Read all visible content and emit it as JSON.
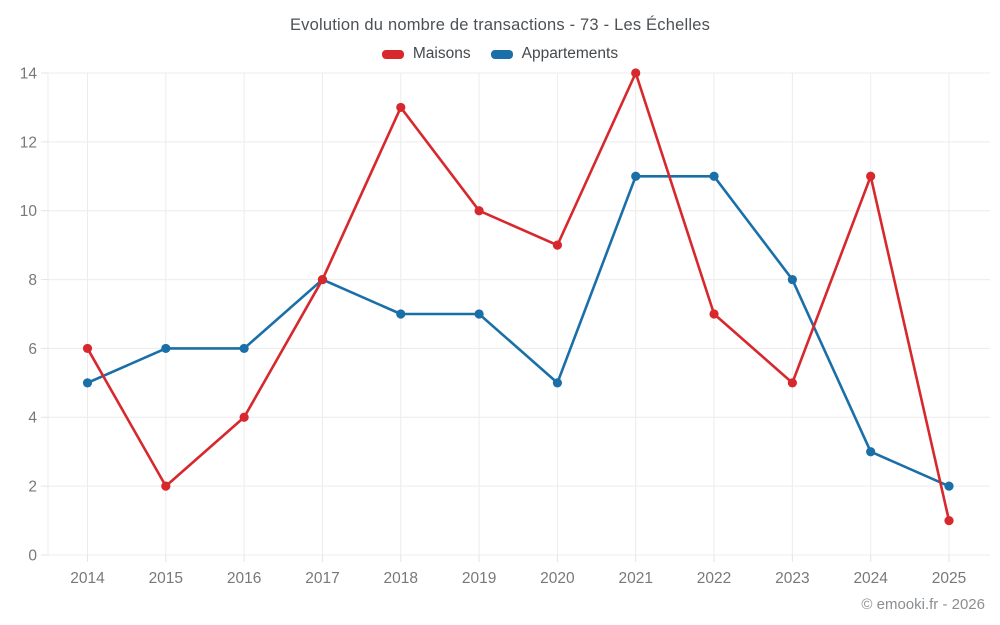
{
  "chart_data": {
    "type": "line",
    "title": "Evolution du nombre de transactions - 73 - Les Échelles",
    "categories": [
      "2014",
      "2015",
      "2016",
      "2017",
      "2018",
      "2019",
      "2020",
      "2021",
      "2022",
      "2023",
      "2024",
      "2025"
    ],
    "series": [
      {
        "name": "Maisons",
        "color": "#d7282d",
        "values": [
          6,
          2,
          4,
          8,
          13,
          10,
          9,
          14,
          7,
          5,
          11,
          1
        ]
      },
      {
        "name": "Appartements",
        "color": "#1b6fa8",
        "values": [
          5,
          6,
          6,
          8,
          7,
          7,
          5,
          11,
          11,
          8,
          3,
          2
        ]
      }
    ],
    "xlabel": "",
    "ylabel": "",
    "ylim": [
      0,
      14
    ],
    "yticks": [
      0,
      2,
      4,
      6,
      8,
      10,
      12,
      14
    ],
    "grid": true,
    "legend_position": "top"
  },
  "footer": {
    "credit": "© emooki.fr - 2026"
  },
  "colors": {
    "background": "#ffffff",
    "grid": "#ececec",
    "axis": "#e4e4e4",
    "tick_label": "#76797c",
    "title": "#4d5155",
    "legend_label": "#45494d",
    "footer": "#8b8e91"
  }
}
